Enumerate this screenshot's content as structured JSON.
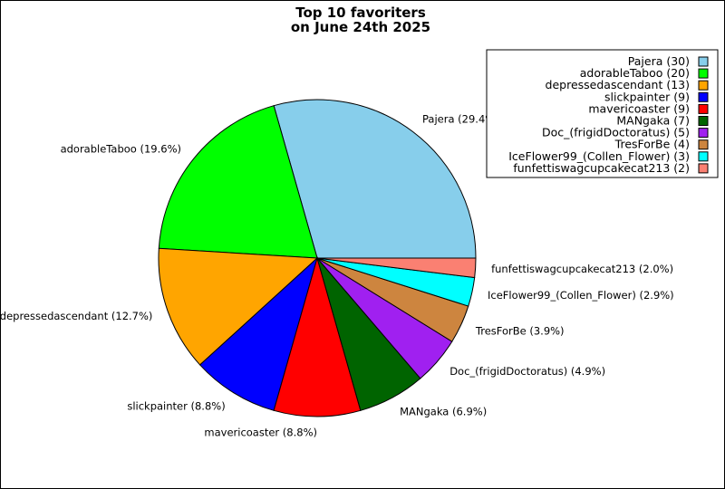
{
  "chart_data": {
    "type": "pie",
    "title_lines": [
      "Top 10 favoriters",
      "on June 24th 2025"
    ],
    "start_angle_deg": 0,
    "direction": "counterclockwise",
    "legend_position": "top-right",
    "slices": [
      {
        "name": "Pajera",
        "value": 30,
        "legend": "Pajera (30)",
        "label": "Pajera (29.4%)",
        "color": "#87CEEB"
      },
      {
        "name": "adorableTaboo",
        "value": 20,
        "legend": "adorableTaboo (20)",
        "label": "adorableTaboo (19.6%)",
        "color": "#00FF00"
      },
      {
        "name": "depressedascendant",
        "value": 13,
        "legend": "depressedascendant (13)",
        "label": "depressedascendant (12.7%)",
        "color": "#FFA500"
      },
      {
        "name": "slickpainter",
        "value": 9,
        "legend": "slickpainter (9)",
        "label": "slickpainter (8.8%)",
        "color": "#0000FF"
      },
      {
        "name": "mavericoaster",
        "value": 9,
        "legend": "mavericoaster (9)",
        "label": "mavericoaster (8.8%)",
        "color": "#FF0000"
      },
      {
        "name": "MANgaka",
        "value": 7,
        "legend": "MANgaka (7)",
        "label": "MANgaka (6.9%)",
        "color": "#006400"
      },
      {
        "name": "Doc_(frigidDoctoratus)",
        "value": 5,
        "legend": "Doc_(frigidDoctoratus) (5)",
        "label": "Doc_(frigidDoctoratus) (4.9%)",
        "color": "#A020F0"
      },
      {
        "name": "TresForBe",
        "value": 4,
        "legend": "TresForBe (4)",
        "label": "TresForBe (3.9%)",
        "color": "#CD853F"
      },
      {
        "name": "IceFlower99_(Collen_Flower)",
        "value": 3,
        "legend": "IceFlower99_(Collen_Flower) (3)",
        "label": "IceFlower99_(Collen_Flower) (2.9%)",
        "color": "#00FFFF"
      },
      {
        "name": "funfettiswagcupcakecat213",
        "value": 2,
        "legend": "funfettiswagcupcakecat213 (2)",
        "label": "funfettiswagcupcakecat213 (2.0%)",
        "color": "#FA8072"
      }
    ]
  }
}
